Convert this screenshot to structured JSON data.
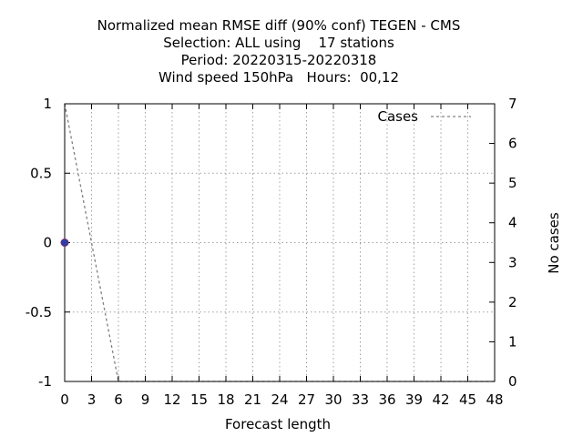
{
  "chart_data": {
    "type": "line",
    "title_lines": [
      "Normalized mean RMSE diff (90% conf) TEGEN - CMS",
      "Selection: ALL using    17 stations",
      "Period: 20220315-20220318",
      "Wind speed 150hPa   Hours:  00,12"
    ],
    "xlabel": "Forecast length",
    "ylabel_right": "No cases",
    "xlim": [
      0,
      48
    ],
    "ylim": [
      -1,
      1
    ],
    "y2lim": [
      0,
      7
    ],
    "x_ticks": [
      0,
      3,
      6,
      9,
      12,
      15,
      18,
      21,
      24,
      27,
      30,
      33,
      36,
      39,
      42,
      45,
      48
    ],
    "y_ticks": [
      -1,
      -0.5,
      0,
      0.5,
      1
    ],
    "y_tick_labels": [
      "-1",
      "-0.5",
      "0",
      "0.5",
      "1"
    ],
    "y2_ticks": [
      0,
      1,
      2,
      3,
      4,
      5,
      6,
      7
    ],
    "grid": true,
    "legend_position": "top-right",
    "series": [
      {
        "name": "Cases",
        "axis": "y2",
        "style": "dashed",
        "color": "#808080",
        "x": [
          0,
          6,
          12,
          18,
          24,
          30,
          36,
          42,
          48
        ],
        "values": [
          7,
          0,
          0,
          0,
          0,
          0,
          0,
          0,
          0
        ]
      }
    ],
    "points": [
      {
        "x": 0,
        "y": 0,
        "color": "#2b3fa8"
      }
    ]
  }
}
